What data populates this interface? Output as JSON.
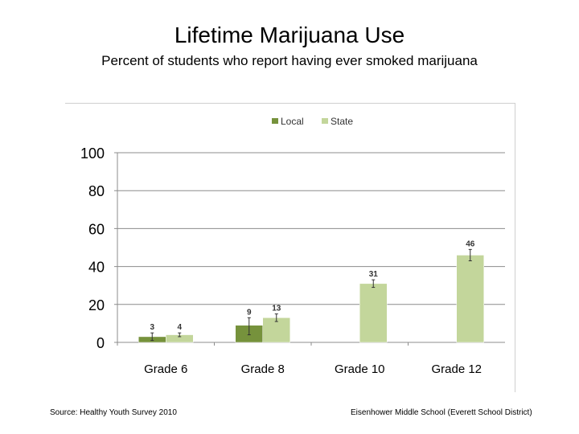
{
  "title": "Lifetime Marijuana Use",
  "subtitle": "Percent of students who report having ever smoked marijuana",
  "footer": {
    "source": "Source: Healthy Youth Survey 2010",
    "school": "Eisenhower Middle School (Everett School District)"
  },
  "chart_data": {
    "type": "bar",
    "title": "Lifetime Marijuana Use",
    "xlabel": "",
    "ylabel": "",
    "categories": [
      "Grade 6",
      "Grade 8",
      "Grade 10",
      "Grade 12"
    ],
    "ylim": [
      0,
      100
    ],
    "yticks": [
      0,
      20,
      40,
      60,
      80,
      100
    ],
    "grid": true,
    "legend_position": "top-center",
    "series": [
      {
        "name": "Local",
        "color": "#76923c",
        "values": [
          3,
          9,
          null,
          null
        ],
        "error_low": [
          1,
          4,
          null,
          null
        ],
        "error_high": [
          5,
          13,
          null,
          null
        ]
      },
      {
        "name": "State",
        "color": "#c3d69b",
        "values": [
          4,
          13,
          31,
          46
        ],
        "error_low": [
          3,
          11,
          29,
          43
        ],
        "error_high": [
          5,
          15,
          33,
          49
        ]
      }
    ]
  }
}
